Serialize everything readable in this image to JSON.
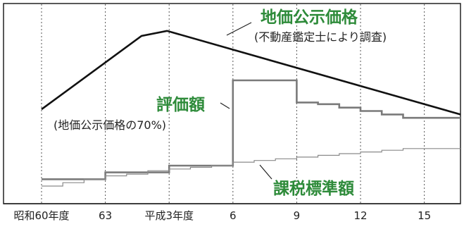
{
  "chart_data": {
    "type": "line",
    "x_tick_labels": [
      "昭和60年度",
      "63",
      "平成3年度",
      "6",
      "9",
      "12",
      "15"
    ],
    "x_tick_years": [
      1985,
      1988,
      1991,
      1994,
      1997,
      2000,
      2003
    ],
    "x_range": [
      1985,
      2004.7
    ],
    "y_range": [
      0,
      100
    ],
    "grid": {
      "vertical": true,
      "style": "dotted"
    },
    "series": [
      {
        "name": "地価公示価格",
        "note": "(不動産鑑定士により調査)",
        "color": "#111111",
        "points": [
          [
            1985,
            45
          ],
          [
            1989.7,
            88
          ],
          [
            1990.9,
            91
          ],
          [
            2004.7,
            42
          ]
        ]
      },
      {
        "name": "評価額",
        "note": "(地価公示価格の70%)",
        "color": "#7a7a7a",
        "step": true,
        "points": [
          [
            1985,
            4
          ],
          [
            1988,
            4
          ],
          [
            1988,
            8
          ],
          [
            1991,
            8
          ],
          [
            1991,
            12
          ],
          [
            1994,
            12
          ],
          [
            1994,
            62
          ],
          [
            1997,
            62
          ],
          [
            1997,
            49
          ],
          [
            1998,
            49
          ],
          [
            1998,
            48
          ],
          [
            1999,
            48
          ],
          [
            1999,
            46
          ],
          [
            2000,
            46
          ],
          [
            2000,
            44
          ],
          [
            2001,
            44
          ],
          [
            2001,
            42
          ],
          [
            2002,
            42
          ],
          [
            2002,
            40
          ],
          [
            2004.7,
            40
          ]
        ]
      },
      {
        "name": "課税標準額",
        "color": "#8a8a8a",
        "step": true,
        "points": [
          [
            1985,
            0
          ],
          [
            1986,
            0
          ],
          [
            1986,
            2
          ],
          [
            1987,
            2
          ],
          [
            1987,
            4
          ],
          [
            1988,
            4
          ],
          [
            1988,
            6
          ],
          [
            1989,
            6
          ],
          [
            1989,
            7
          ],
          [
            1990,
            7
          ],
          [
            1990,
            9
          ],
          [
            1991,
            9
          ],
          [
            1991,
            10
          ],
          [
            1992,
            10
          ],
          [
            1992,
            11
          ],
          [
            1993,
            11
          ],
          [
            1993,
            12
          ],
          [
            1994,
            12
          ],
          [
            1994,
            14
          ],
          [
            1995,
            14
          ],
          [
            1995,
            15
          ],
          [
            1996,
            15
          ],
          [
            1996,
            16
          ],
          [
            1997,
            16
          ],
          [
            1997,
            17
          ],
          [
            1998,
            17
          ],
          [
            1998,
            18
          ],
          [
            1999,
            18
          ],
          [
            1999,
            19
          ],
          [
            2000,
            19
          ],
          [
            2000,
            20
          ],
          [
            2001,
            20
          ],
          [
            2001,
            21
          ],
          [
            2002,
            21
          ],
          [
            2002,
            22
          ],
          [
            2004.7,
            22
          ]
        ]
      }
    ],
    "labels": {
      "chika": "地価公示価格",
      "chika_note": "(不動産鑑定士により調査)",
      "hyouka": "評価額",
      "hyouka_note": "(地価公示価格の70%)",
      "kazei": "課税標準額"
    },
    "accent_color": "#2e8b3a"
  }
}
